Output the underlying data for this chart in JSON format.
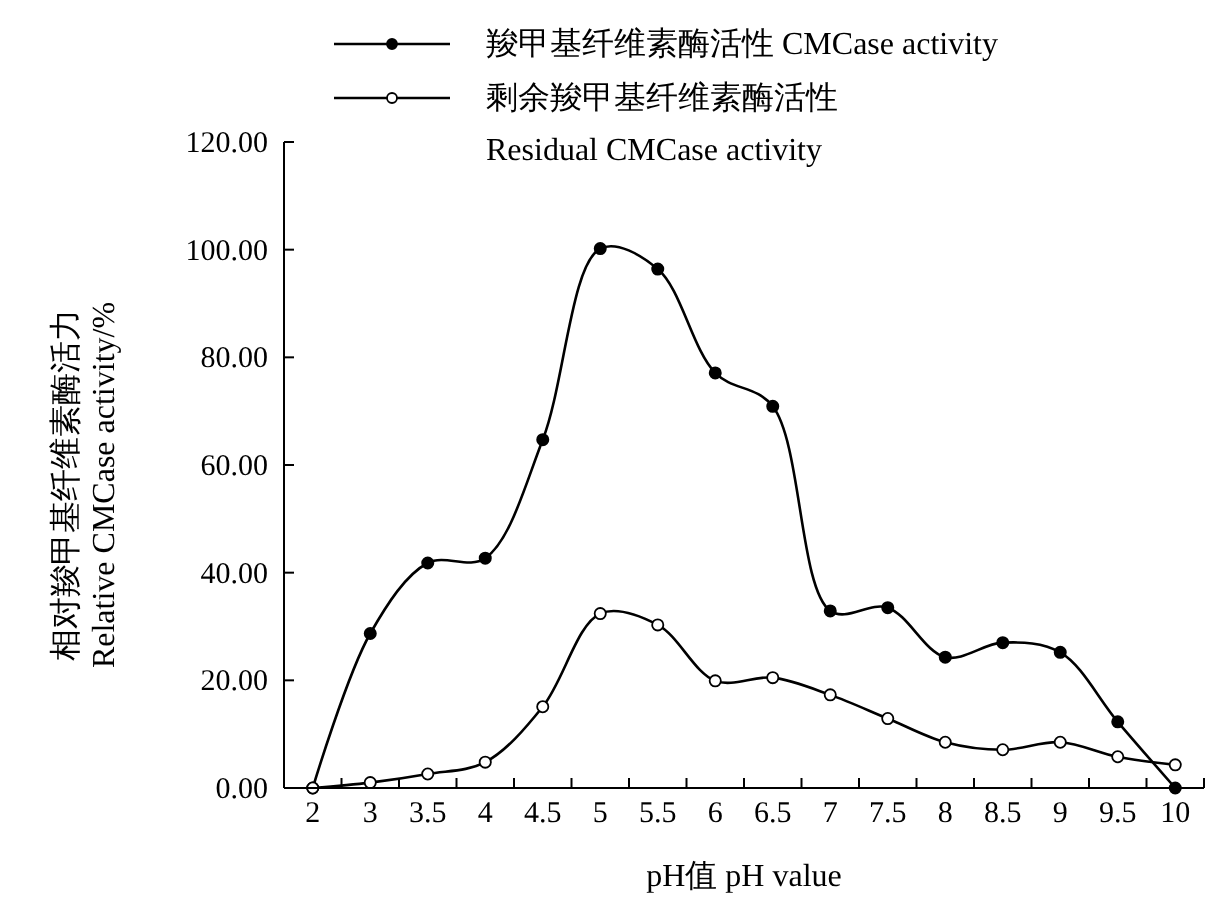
{
  "chart_data": {
    "type": "line",
    "xlabel": "pH值 pH value",
    "ylabel": "相对羧甲基纤维素酶活力\nRelative CMCase activity/%",
    "categories": [
      "2",
      "3",
      "3.5",
      "4",
      "4.5",
      "5",
      "5.5",
      "6",
      "6.5",
      "7",
      "7.5",
      "8",
      "8.5",
      "9",
      "9.5",
      "10"
    ],
    "series": [
      {
        "name": "羧甲基纤维素酶活性 CMCase activity",
        "color": "#000000",
        "marker": "circle",
        "values": [
          0,
          28.7,
          41.8,
          42.7,
          64.7,
          100.2,
          96.4,
          77.1,
          70.9,
          32.9,
          33.5,
          24.3,
          27.0,
          25.2,
          12.3,
          0
        ]
      },
      {
        "name": "剩余羧甲基纤维素酶活性\nResidual CMCase activity",
        "color": "#000000",
        "marker": "circle",
        "values": [
          0,
          1.0,
          2.6,
          4.8,
          15.1,
          32.4,
          30.3,
          19.9,
          20.5,
          17.3,
          12.9,
          8.5,
          7.1,
          8.5,
          5.8,
          4.3
        ]
      }
    ],
    "ylim": [
      0,
      120
    ],
    "yticks": [
      {
        "value": 0,
        "label": "0.00"
      },
      {
        "value": 20,
        "label": "20.00"
      },
      {
        "value": 40,
        "label": "40.00"
      },
      {
        "value": 60,
        "label": "60.00"
      },
      {
        "value": 80,
        "label": "80.00"
      },
      {
        "value": 100,
        "label": "100.00"
      },
      {
        "value": 120,
        "label": "120.00"
      }
    ],
    "legend": "top",
    "line_style": "solid"
  }
}
